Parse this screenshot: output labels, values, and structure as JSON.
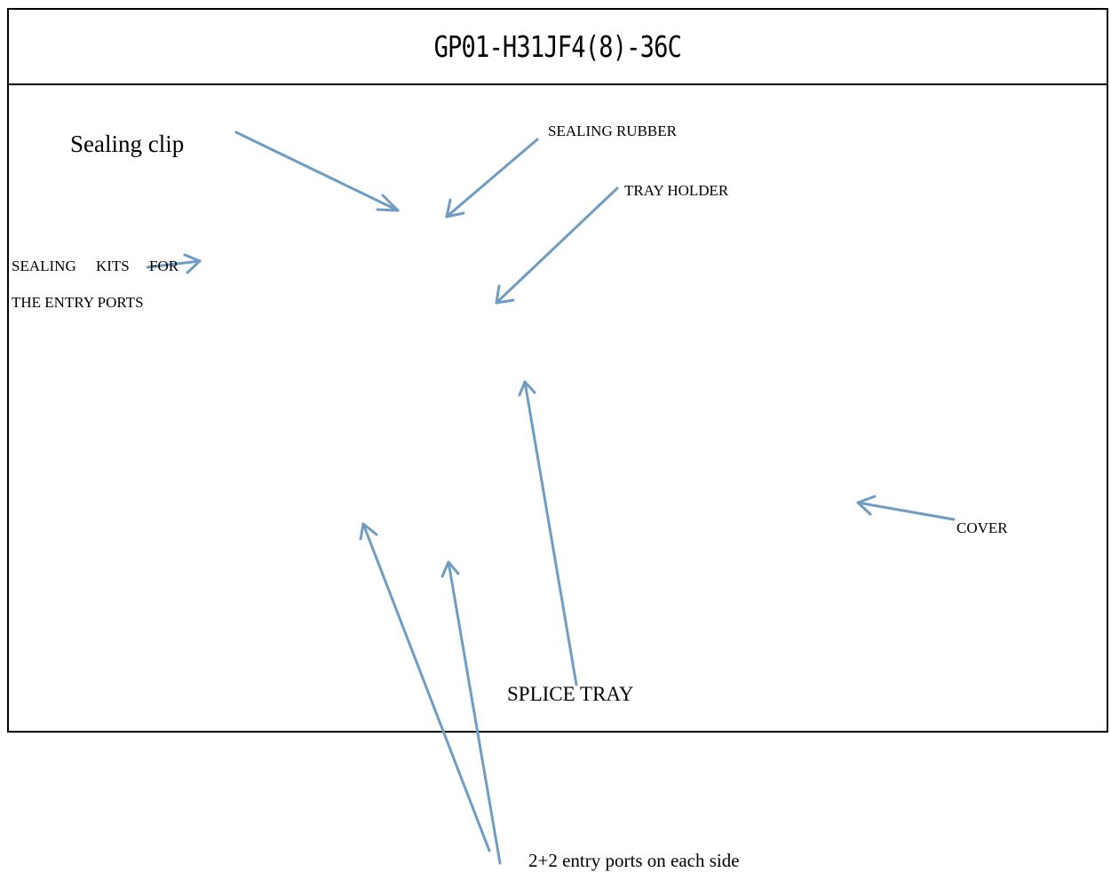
{
  "title": "GP01-H31JF4(8)-36C",
  "labels": {
    "sealing_clip": "Sealing clip",
    "sealing_rubber": "SEALING RUBBER",
    "tray_holder": "TRAY HOLDER",
    "sealing_kits_line1": "SEALING KITS FOR",
    "sealing_kits_line2": "THE ENTRY PORTS",
    "cover": "COVER",
    "splice_tray": "SPLICE TRAY",
    "entry_ports": "2+2 entry ports on each side"
  },
  "colors": {
    "arrow": "#6f9cc2",
    "border": "#000000",
    "text": "#000000"
  }
}
